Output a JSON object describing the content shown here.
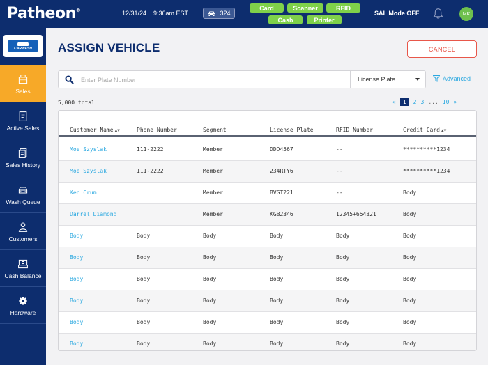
{
  "header": {
    "logo": "Patheon",
    "date": "12/31/24",
    "time": "9:36am EST",
    "vehicle_count": "324",
    "pills": [
      "Card",
      "Scanner",
      "RFID",
      "Cash",
      "Printer"
    ],
    "sal_mode": "SAL Mode OFF",
    "avatar_initials": "MK"
  },
  "brand": {
    "name": "CARWASH"
  },
  "sidebar": {
    "items": [
      {
        "label": "Sales",
        "icon": "sales-icon"
      },
      {
        "label": "Active Sales",
        "icon": "receipt-icon"
      },
      {
        "label": "Sales History",
        "icon": "history-icon"
      },
      {
        "label": "Wash Queue",
        "icon": "car-icon"
      },
      {
        "label": "Customers",
        "icon": "person-icon"
      },
      {
        "label": "Cash Balance",
        "icon": "cash-register-icon"
      },
      {
        "label": "Hardware",
        "icon": "gear-icon"
      }
    ]
  },
  "page": {
    "title": "ASSIGN VEHICLE",
    "cancel_label": "CANCEL"
  },
  "search": {
    "placeholder": "Enter Plate Number",
    "value": "",
    "type_selected": "License Plate",
    "advanced_label": "Advanced"
  },
  "results": {
    "total": "5,000 total"
  },
  "pagination": {
    "prev": "«",
    "current": "1",
    "pages": [
      "2",
      "3"
    ],
    "ellipsis": "...",
    "last": "10",
    "next": "»"
  },
  "table": {
    "columns": [
      "Customer Name",
      "Phone Number",
      "Segment",
      "License Plate",
      "RFID Number",
      "Credit Card"
    ],
    "rows": [
      [
        "Moe Szyslak",
        "111-2222",
        "Member",
        "DDD4567",
        "--",
        "**********1234"
      ],
      [
        "Moe Szyslak",
        "111-2222",
        "Member",
        "234RTY6",
        "--",
        "**********1234"
      ],
      [
        "Ken Crum",
        "",
        "Member",
        "BVGT221",
        "--",
        "Body"
      ],
      [
        "Darrel Diamond",
        "",
        "Member",
        "KGB2346",
        "12345+654321",
        "Body"
      ],
      [
        "Body",
        "Body",
        "Body",
        "Body",
        "Body",
        "Body"
      ],
      [
        "Body",
        "Body",
        "Body",
        "Body",
        "Body",
        "Body"
      ],
      [
        "Body",
        "Body",
        "Body",
        "Body",
        "Body",
        "Body"
      ],
      [
        "Body",
        "Body",
        "Body",
        "Body",
        "Body",
        "Body"
      ],
      [
        "Body",
        "Body",
        "Body",
        "Body",
        "Body",
        "Body"
      ],
      [
        "Body",
        "Body",
        "Body",
        "Body",
        "Body",
        "Body"
      ]
    ]
  },
  "colors": {
    "navy": "#0d2d6e",
    "active_nav": "#f7a928",
    "pill_green": "#7fd14a",
    "link_blue": "#2aa8e0",
    "cancel_red": "#e8574a"
  }
}
